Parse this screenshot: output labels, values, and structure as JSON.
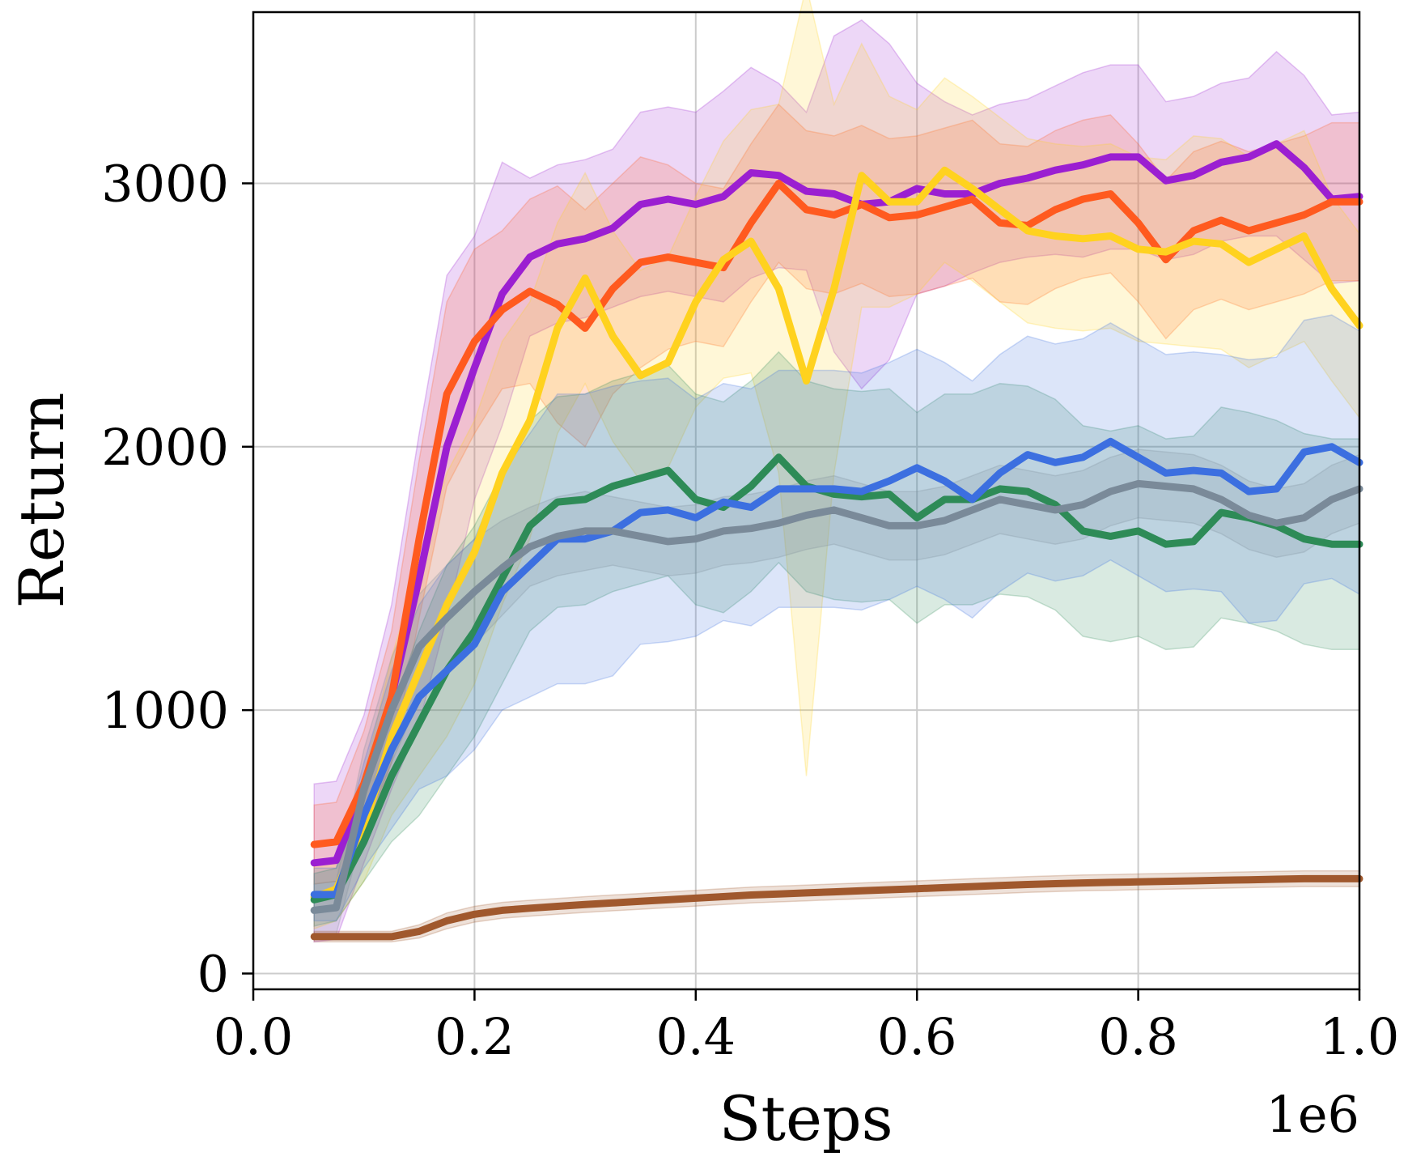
{
  "chart_data": {
    "type": "line",
    "title": "",
    "xlabel": "Steps",
    "ylabel": "Return",
    "x_offset_label": "1e6",
    "xlim": [
      0.0,
      1.0
    ],
    "ylim": [
      -60,
      3650
    ],
    "xticks": [
      0.0,
      0.2,
      0.4,
      0.6,
      0.8,
      1.0
    ],
    "xtick_labels": [
      "0.0",
      "0.2",
      "0.4",
      "0.6",
      "0.8",
      "1.0"
    ],
    "yticks": [
      0,
      1000,
      2000,
      3000
    ],
    "ytick_labels": [
      "0",
      "1000",
      "2000",
      "3000"
    ],
    "grid": true,
    "legend": "none",
    "x": [
      0.055,
      0.075,
      0.1,
      0.125,
      0.15,
      0.175,
      0.2,
      0.225,
      0.25,
      0.275,
      0.3,
      0.325,
      0.35,
      0.375,
      0.4,
      0.425,
      0.45,
      0.475,
      0.5,
      0.525,
      0.55,
      0.575,
      0.6,
      0.625,
      0.65,
      0.675,
      0.7,
      0.725,
      0.75,
      0.775,
      0.8,
      0.825,
      0.85,
      0.875,
      0.9,
      0.925,
      0.95,
      0.975,
      1.0
    ],
    "series": [
      {
        "name": "purple",
        "color": "#9b1fd1",
        "values": [
          420,
          430,
          700,
          1050,
          1500,
          2000,
          2300,
          2580,
          2720,
          2770,
          2790,
          2830,
          2920,
          2940,
          2920,
          2950,
          3040,
          3030,
          2970,
          2960,
          2920,
          2930,
          2980,
          2960,
          2960,
          3000,
          3020,
          3050,
          3070,
          3100,
          3100,
          3010,
          3030,
          3080,
          3100,
          3150,
          3060,
          2940,
          2950
        ],
        "band": [
          300,
          300,
          280,
          350,
          550,
          650,
          500,
          500,
          300,
          300,
          300,
          300,
          350,
          350,
          350,
          400,
          400,
          350,
          300,
          600,
          700,
          600,
          400,
          350,
          300,
          300,
          300,
          320,
          350,
          350,
          350,
          300,
          300,
          300,
          300,
          350,
          350,
          320,
          320
        ]
      },
      {
        "name": "orange",
        "color": "#ff5a1f",
        "values": [
          490,
          500,
          720,
          1050,
          1650,
          2200,
          2400,
          2520,
          2590,
          2540,
          2450,
          2600,
          2700,
          2720,
          2700,
          2680,
          2850,
          3000,
          2900,
          2880,
          2920,
          2870,
          2880,
          2910,
          2940,
          2850,
          2840,
          2900,
          2940,
          2960,
          2850,
          2710,
          2820,
          2860,
          2820,
          2850,
          2880,
          2930,
          2930
        ],
        "band": [
          150,
          150,
          200,
          250,
          300,
          350,
          350,
          300,
          350,
          450,
          450,
          400,
          400,
          350,
          300,
          300,
          300,
          300,
          300,
          300,
          300,
          300,
          300,
          300,
          300,
          300,
          300,
          300,
          300,
          300,
          300,
          300,
          300,
          300,
          300,
          300,
          300,
          300,
          300
        ]
      },
      {
        "name": "yellow",
        "color": "#ffd21f",
        "values": [
          290,
          320,
          550,
          900,
          1150,
          1400,
          1600,
          1900,
          2100,
          2450,
          2640,
          2420,
          2270,
          2320,
          2550,
          2710,
          2780,
          2600,
          2250,
          2600,
          3030,
          2930,
          2930,
          3050,
          2980,
          2900,
          2820,
          2800,
          2790,
          2800,
          2750,
          2740,
          2780,
          2770,
          2700,
          2750,
          2800,
          2600,
          2460
        ],
        "band": [
          120,
          120,
          200,
          300,
          400,
          500,
          500,
          500,
          450,
          400,
          400,
          400,
          400,
          400,
          400,
          450,
          500,
          700,
          1500,
          700,
          500,
          400,
          350,
          350,
          350,
          350,
          350,
          350,
          350,
          350,
          350,
          350,
          400,
          400,
          400,
          400,
          400,
          350,
          350
        ]
      },
      {
        "name": "green",
        "color": "#2e8b57",
        "values": [
          280,
          300,
          500,
          750,
          950,
          1150,
          1300,
          1500,
          1700,
          1790,
          1800,
          1850,
          1880,
          1910,
          1800,
          1770,
          1850,
          1960,
          1850,
          1820,
          1810,
          1820,
          1730,
          1800,
          1800,
          1840,
          1830,
          1780,
          1680,
          1660,
          1680,
          1630,
          1640,
          1750,
          1730,
          1700,
          1650,
          1630,
          1630
        ],
        "band": [
          100,
          100,
          150,
          250,
          350,
          400,
          400,
          400,
          400,
          400,
          400,
          400,
          400,
          400,
          400,
          400,
          400,
          400,
          400,
          400,
          400,
          400,
          400,
          400,
          400,
          400,
          400,
          400,
          400,
          400,
          400,
          400,
          400,
          400,
          400,
          400,
          400,
          400,
          400
        ]
      },
      {
        "name": "blue",
        "color": "#3c6fe0",
        "values": [
          300,
          300,
          600,
          850,
          1050,
          1150,
          1250,
          1450,
          1550,
          1650,
          1650,
          1680,
          1750,
          1760,
          1730,
          1790,
          1770,
          1840,
          1840,
          1840,
          1830,
          1870,
          1920,
          1870,
          1800,
          1900,
          1970,
          1940,
          1960,
          2020,
          1960,
          1900,
          1910,
          1900,
          1830,
          1840,
          1980,
          2000,
          1940
        ],
        "band": [
          100,
          100,
          200,
          300,
          350,
          400,
          400,
          450,
          500,
          550,
          550,
          550,
          500,
          500,
          450,
          450,
          450,
          450,
          450,
          450,
          450,
          450,
          450,
          450,
          450,
          450,
          450,
          450,
          450,
          450,
          450,
          450,
          450,
          450,
          500,
          500,
          500,
          500,
          500
        ]
      },
      {
        "name": "gray",
        "color": "#7a8a99",
        "values": [
          240,
          250,
          700,
          1000,
          1240,
          1350,
          1450,
          1540,
          1620,
          1660,
          1680,
          1680,
          1660,
          1640,
          1650,
          1680,
          1690,
          1710,
          1740,
          1760,
          1730,
          1700,
          1700,
          1720,
          1760,
          1800,
          1780,
          1760,
          1780,
          1830,
          1860,
          1850,
          1840,
          1800,
          1740,
          1710,
          1730,
          1800,
          1840
        ],
        "band": [
          100,
          100,
          150,
          200,
          200,
          200,
          200,
          180,
          150,
          150,
          150,
          130,
          130,
          130,
          130,
          130,
          130,
          130,
          130,
          130,
          130,
          130,
          130,
          130,
          130,
          130,
          130,
          130,
          130,
          130,
          130,
          130,
          130,
          130,
          130,
          130,
          130,
          130,
          130
        ]
      },
      {
        "name": "brown",
        "color": "#a0582d",
        "values": [
          140,
          140,
          140,
          140,
          160,
          200,
          225,
          240,
          248,
          255,
          262,
          268,
          274,
          280,
          286,
          292,
          298,
          302,
          306,
          310,
          314,
          318,
          322,
          326,
          330,
          334,
          338,
          341,
          344,
          346,
          348,
          350,
          352,
          354,
          356,
          358,
          360,
          360,
          360
        ],
        "band": [
          20,
          20,
          20,
          20,
          25,
          30,
          30,
          30,
          30,
          30,
          30,
          30,
          30,
          30,
          30,
          30,
          30,
          30,
          30,
          30,
          30,
          30,
          30,
          30,
          30,
          30,
          30,
          30,
          30,
          30,
          30,
          30,
          30,
          30,
          30,
          30,
          30,
          30,
          30
        ]
      }
    ]
  }
}
